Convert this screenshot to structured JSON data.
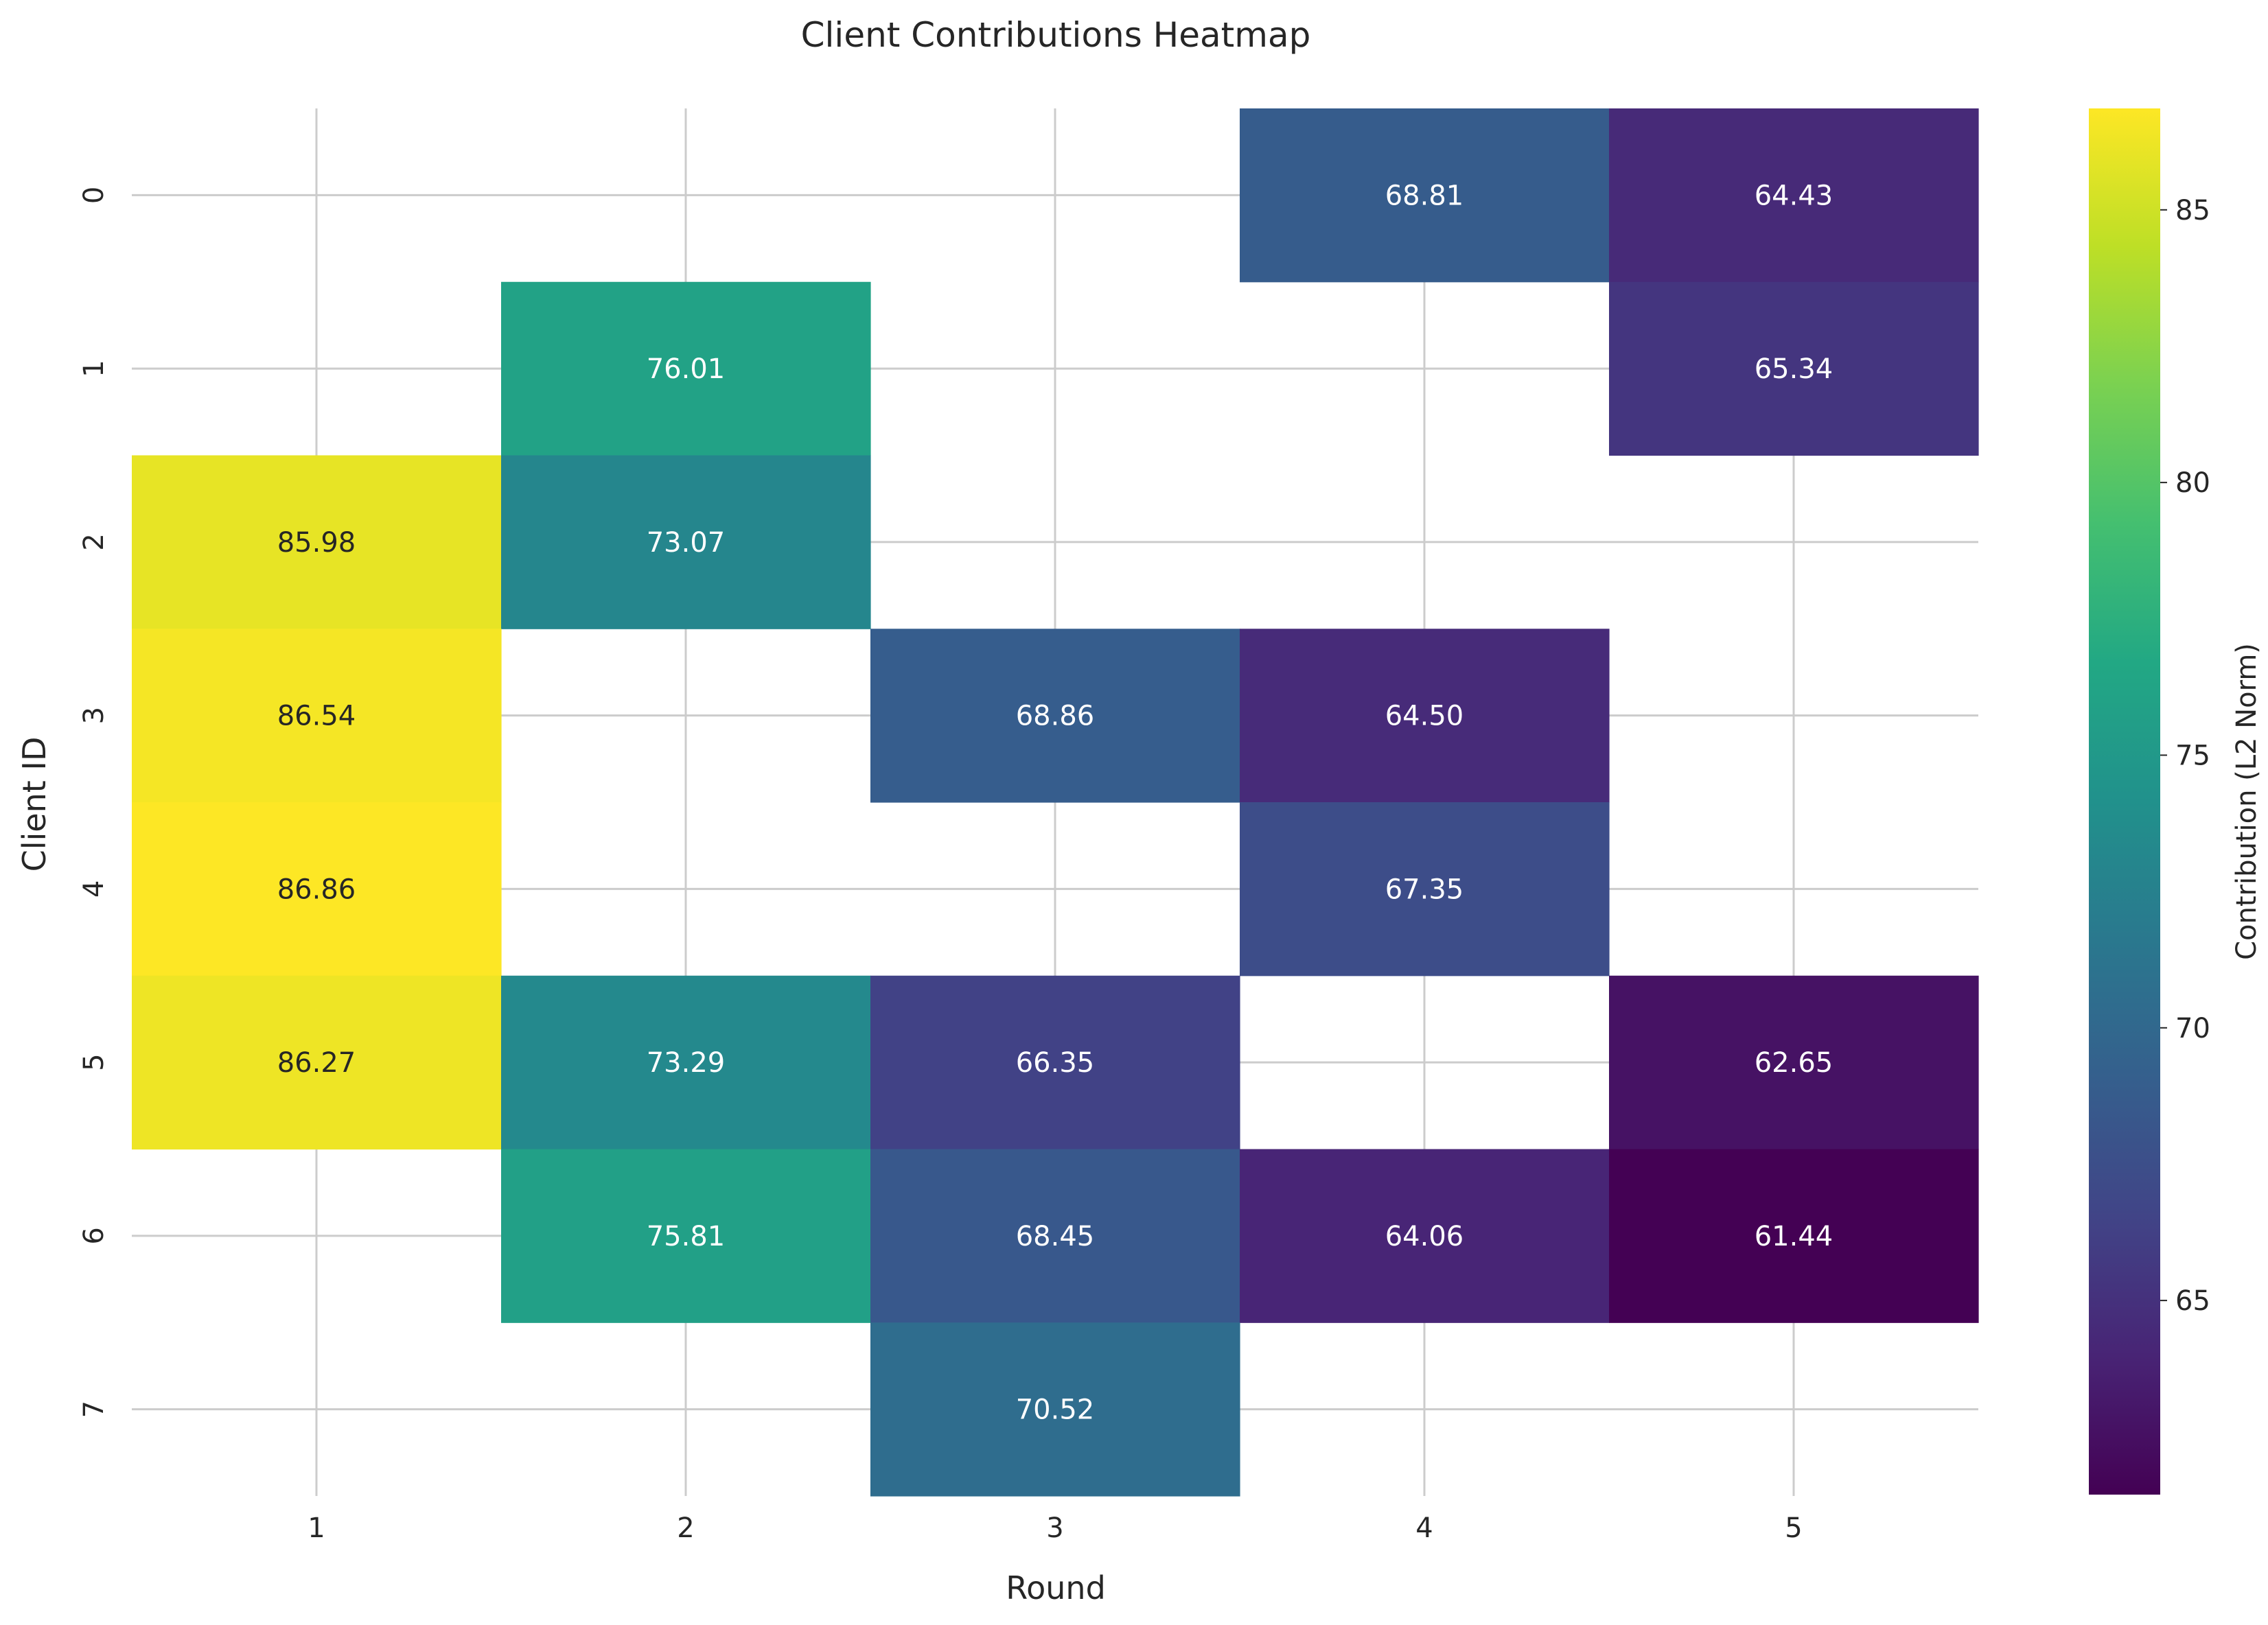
{
  "chart_data": {
    "type": "heatmap",
    "title": "Client Contributions Heatmap",
    "xlabel": "Round",
    "ylabel": "Client ID",
    "x_categories": [
      "1",
      "2",
      "3",
      "4",
      "5"
    ],
    "y_categories": [
      "0",
      "1",
      "2",
      "3",
      "4",
      "5",
      "6",
      "7"
    ],
    "values": [
      [
        null,
        null,
        null,
        68.81,
        64.43
      ],
      [
        null,
        76.01,
        null,
        null,
        65.34
      ],
      [
        85.98,
        73.07,
        null,
        null,
        null
      ],
      [
        86.54,
        null,
        68.86,
        64.5,
        null
      ],
      [
        86.86,
        null,
        null,
        67.35,
        null
      ],
      [
        86.27,
        73.29,
        66.35,
        null,
        62.65
      ],
      [
        null,
        75.81,
        68.45,
        64.06,
        61.44
      ],
      [
        null,
        null,
        70.52,
        null,
        null
      ]
    ],
    "colorbar": {
      "label": "Contribution (L2 Norm)",
      "ticks": [
        65,
        70,
        75,
        80,
        85
      ],
      "range": [
        61.44,
        86.86
      ],
      "colormap": "viridis"
    },
    "grid": true,
    "colors": {
      "grid": "#cccccc",
      "text_dark": "#262626",
      "text_light": "#ffffff"
    }
  }
}
